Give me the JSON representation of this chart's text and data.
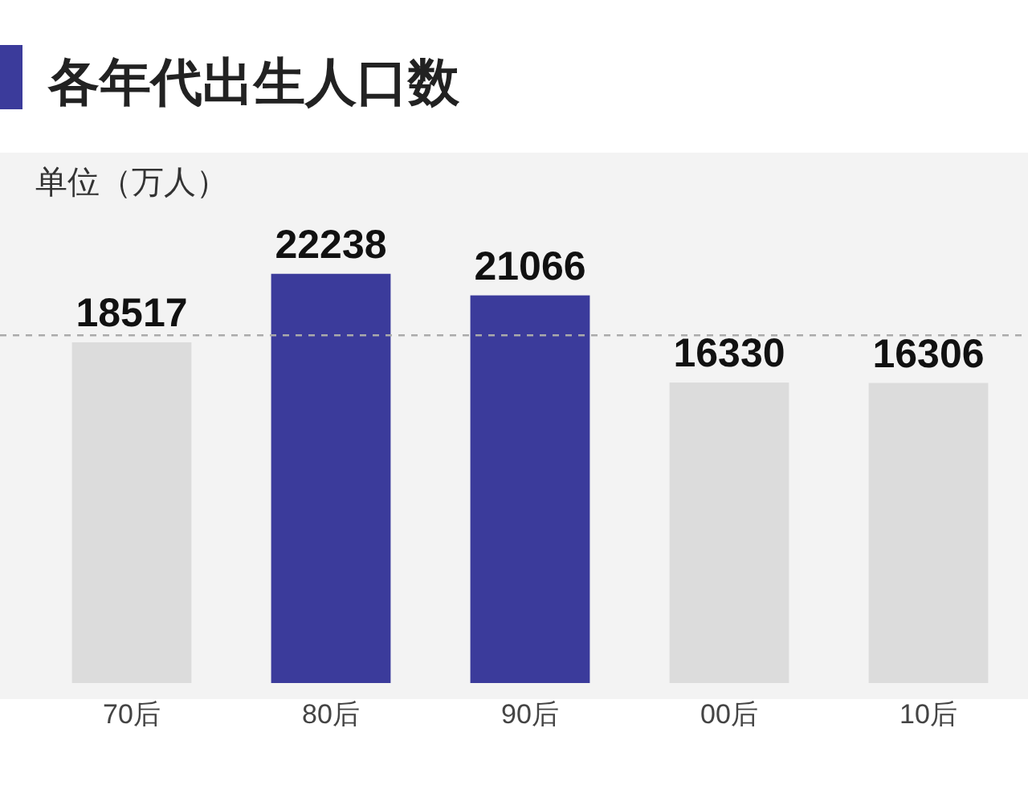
{
  "chart_data": {
    "type": "bar",
    "title": "各年代出生人口数",
    "subtitle": "单位（万人）",
    "categories": [
      "70后",
      "80后",
      "90后",
      "00后",
      "10后"
    ],
    "values": [
      18517,
      22238,
      21066,
      16330,
      16306
    ],
    "colors": [
      "#dcdcdc",
      "#3b3b9b",
      "#3b3b9b",
      "#dcdcdc",
      "#dcdcdc"
    ],
    "data_labels": true,
    "ref_lines": [
      {
        "axis": "y",
        "value": 18900,
        "line_style": "dashed",
        "color": "#aaaaaa"
      }
    ]
  }
}
